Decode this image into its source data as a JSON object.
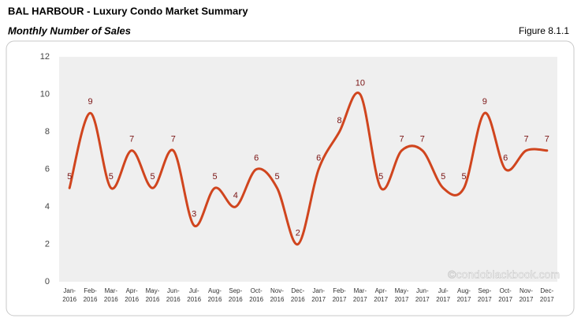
{
  "chart_data": {
    "type": "line",
    "title": "BAL HARBOUR - Luxury Condo Market Summary",
    "subtitle": "Monthly Number of Sales",
    "figure_label": "Figure 8.1.1",
    "watermark": "©condoblackbook.com",
    "categories": [
      "Jan-2016",
      "Feb-2016",
      "Mar-2016",
      "Apr-2016",
      "May-2016",
      "Jun-2016",
      "Jul-2016",
      "Aug-2016",
      "Sep-2016",
      "Oct-2016",
      "Nov-2016",
      "Dec-2016",
      "Jan-2017",
      "Feb-2017",
      "Mar-2017",
      "Apr-2017",
      "May-2017",
      "Jun-2017",
      "Jul-2017",
      "Aug-2017",
      "Sep-2017",
      "Oct-2017",
      "Nov-2017",
      "Dec-2017"
    ],
    "values": [
      5,
      9,
      5,
      7,
      5,
      7,
      3,
      5,
      4,
      6,
      5,
      2,
      6,
      8,
      10,
      5,
      7,
      7,
      5,
      5,
      9,
      6,
      7,
      7
    ],
    "color": "#d0451e",
    "label_color": "#7a1414",
    "ylim": [
      0,
      12
    ],
    "yticks": [
      0,
      2,
      4,
      6,
      8,
      10,
      12
    ]
  }
}
